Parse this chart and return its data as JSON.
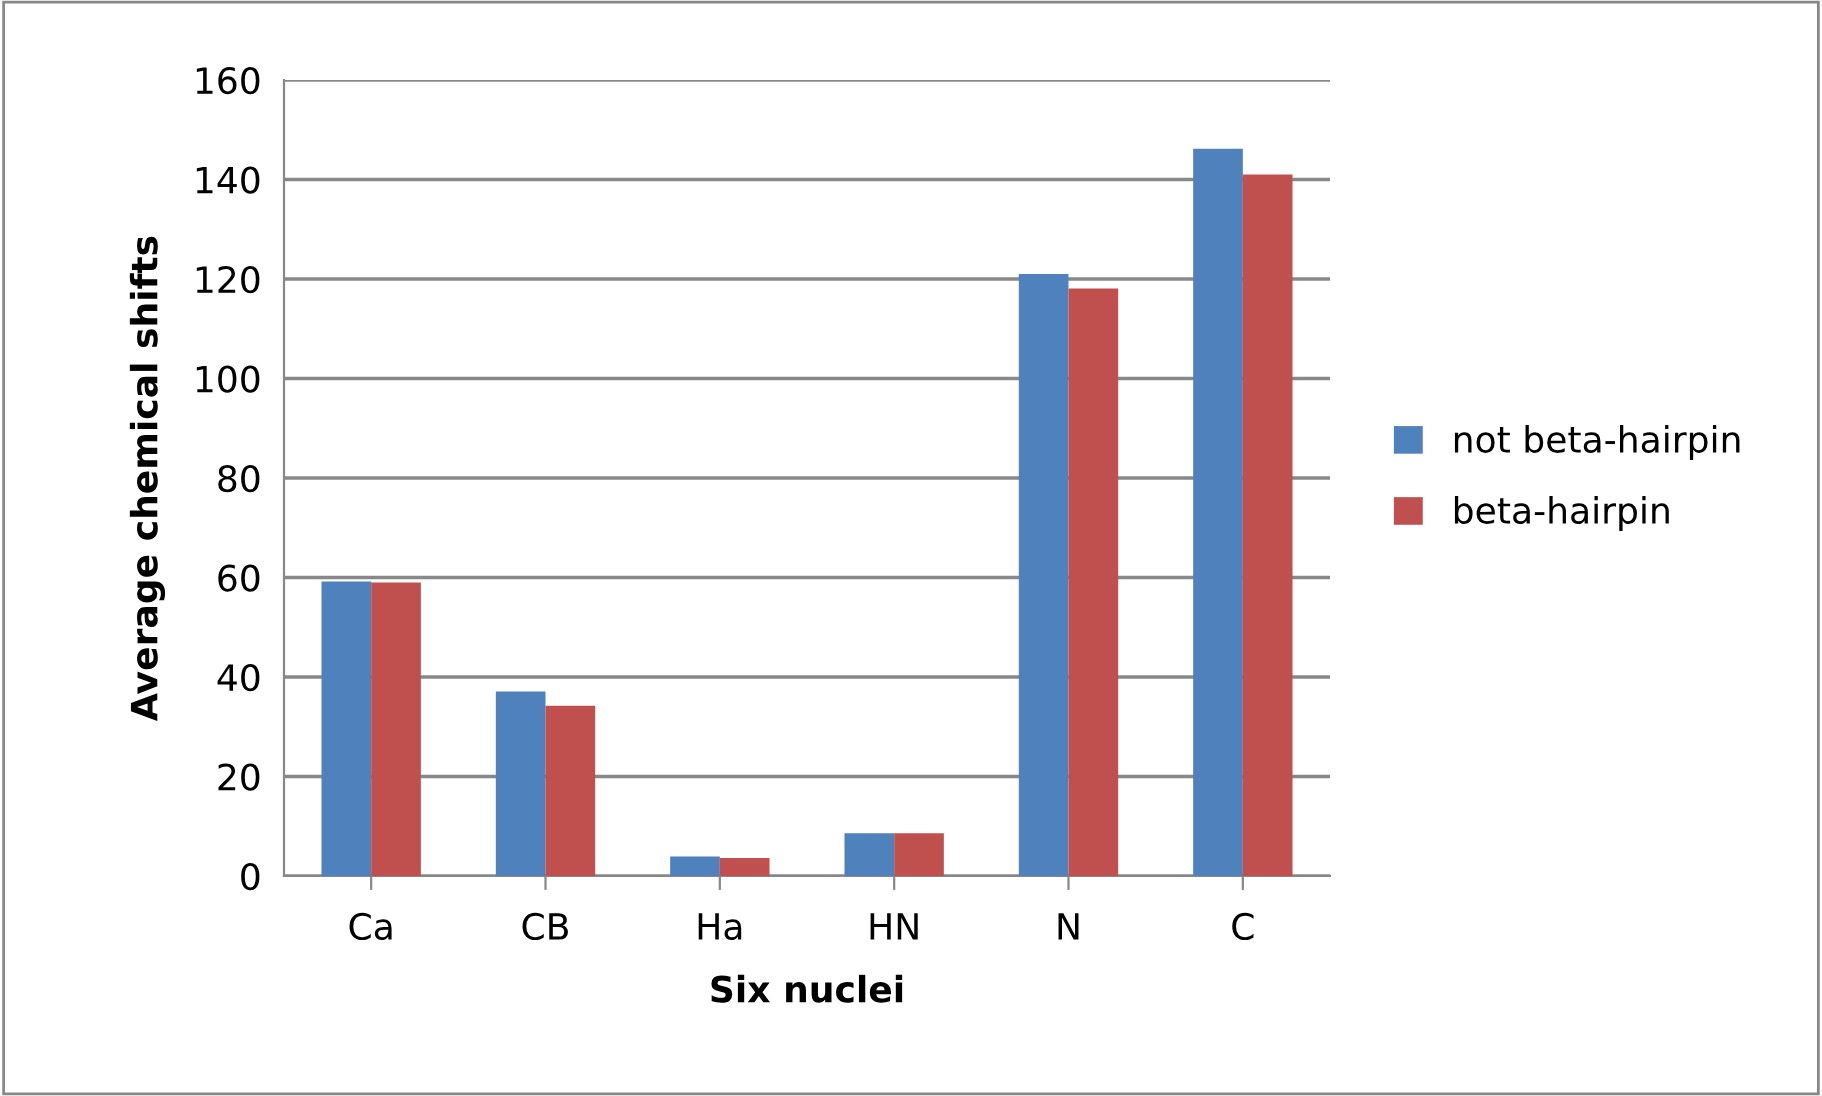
{
  "chart_data": {
    "type": "bar",
    "xlabel": "Six nuclei",
    "ylabel": "Average chemical shifts",
    "categories": [
      "Ca",
      "CB",
      "Ha",
      "HN",
      "N",
      "C"
    ],
    "series": [
      {
        "name": "not beta-hairpin",
        "color": "#4f81bd",
        "values": [
          59.2,
          37.1,
          3.9,
          8.6,
          121.0,
          146.2
        ]
      },
      {
        "name": "beta-hairpin",
        "color": "#c0504d",
        "values": [
          59.0,
          34.2,
          3.6,
          8.6,
          118.1,
          141.0
        ]
      }
    ],
    "ylim": [
      0,
      160
    ],
    "yticks": [
      0,
      20,
      40,
      60,
      80,
      100,
      120,
      140,
      160
    ],
    "grid": "y",
    "legend": "right"
  }
}
